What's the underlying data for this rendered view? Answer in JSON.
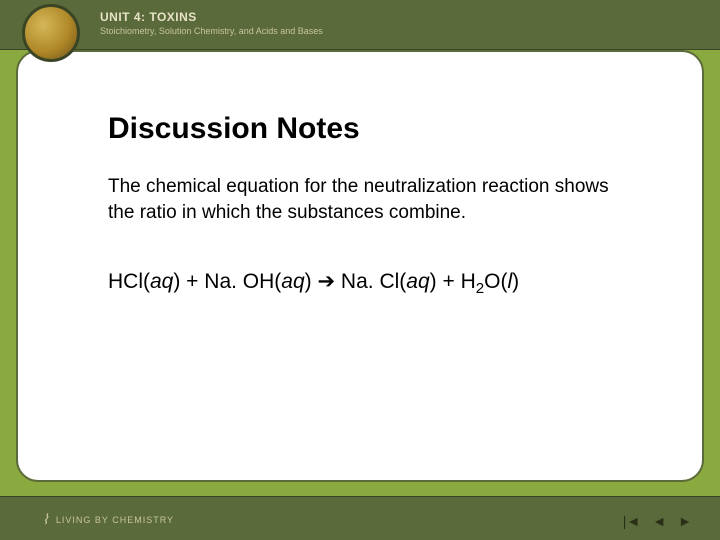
{
  "header": {
    "unit_title": "UNIT 4: TOXINS",
    "unit_subtitle": "Stoichiometry, Solution Chemistry, and Acids and Bases"
  },
  "content": {
    "title": "Discussion Notes",
    "paragraph": "The chemical equation for the neutralization reaction shows the ratio in which the substances combine.",
    "equation": {
      "r1": "HCl(",
      "r1_state": "aq",
      "r1_close": ") + Na. OH(",
      "r2_state": "aq",
      "r2_close": ") ",
      "arrow": "➔",
      "p1": " Na. Cl(",
      "p1_state": "aq",
      "p1_close": ") + H",
      "sub2": "2",
      "p2": "O(",
      "p2_state": "l",
      "p2_close": ")"
    }
  },
  "footer": {
    "brand": "LIVING BY CHEMISTRY"
  },
  "colors": {
    "slide_bg": "#8aaa3f",
    "header_bg": "#5a6a3a",
    "card_bg": "#ffffff",
    "text": "#000000",
    "header_text": "#e8e2c8"
  }
}
